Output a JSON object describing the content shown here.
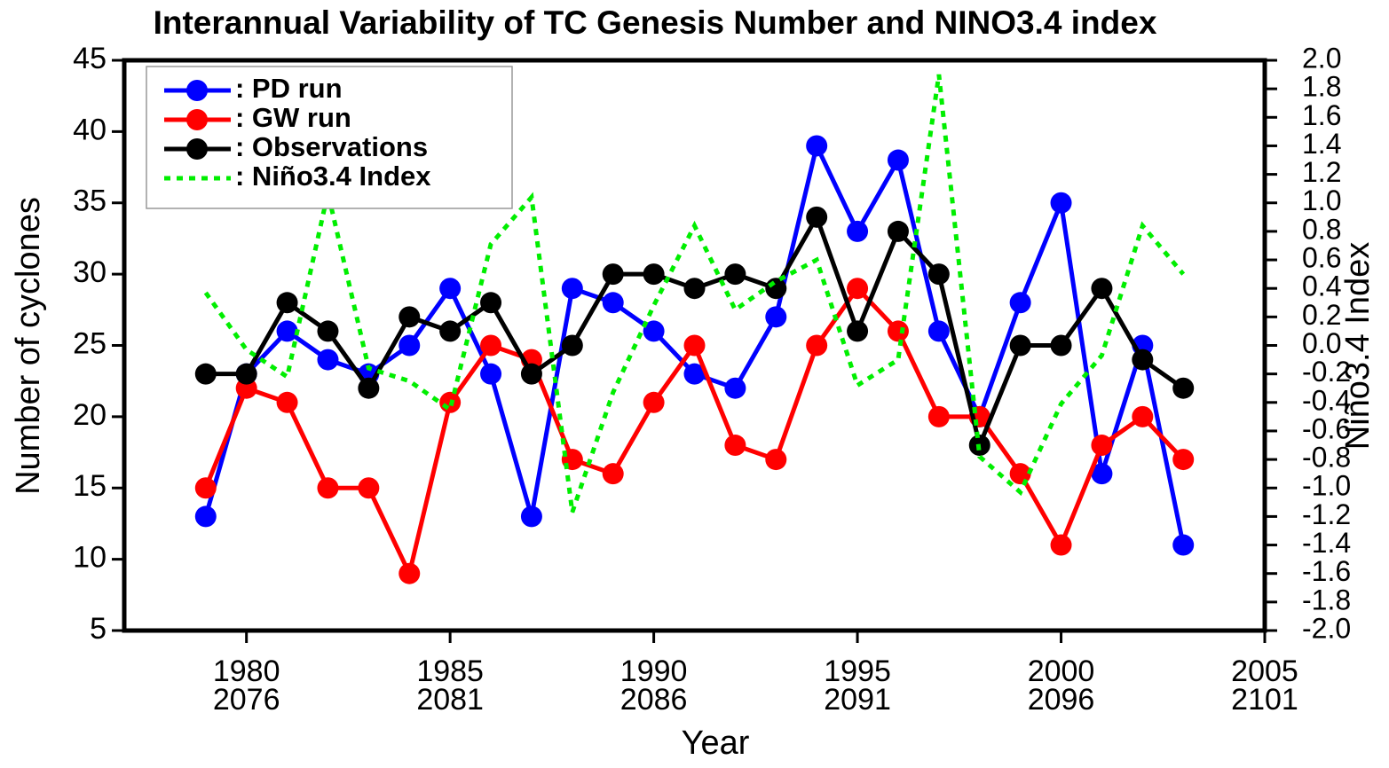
{
  "chart_data": {
    "type": "line",
    "title": "Interannual Variability of TC Genesis Number and NINO3.4 index",
    "xlabel": "Year",
    "ylabel": "Number of cyclones",
    "y2label": "Niño3.4 Index",
    "x": [
      1979,
      1980,
      1981,
      1982,
      1983,
      1984,
      1985,
      1986,
      1987,
      1988,
      1989,
      1990,
      1991,
      1992,
      1993,
      1994,
      1995,
      1996,
      1997,
      1998,
      1999,
      2000,
      2001,
      2002,
      2003
    ],
    "xlim": [
      1977,
      2005
    ],
    "xticks": [
      1980,
      1985,
      1990,
      1995,
      2000,
      2005
    ],
    "xticks_second_row": [
      2076,
      2081,
      2086,
      2091,
      2096,
      2101
    ],
    "ylim": [
      5,
      45
    ],
    "yticks": [
      5,
      10,
      15,
      20,
      25,
      30,
      35,
      40,
      45
    ],
    "y2lim": [
      -2,
      2
    ],
    "y2ticks": [
      {
        "value": -2,
        "label": "-2.0"
      },
      -1.8,
      -1.6,
      -1.4,
      -1.2,
      {
        "value": -1,
        "label": "-1.0"
      },
      -0.8,
      -0.6,
      -0.4,
      -0.2,
      {
        "value": 0,
        "label": "0.0"
      },
      0.2,
      0.4,
      0.6,
      0.8,
      {
        "value": 1,
        "label": "1.0"
      },
      1.2,
      1.4,
      1.6,
      1.8,
      {
        "value": 2,
        "label": "2.0"
      }
    ],
    "legend": "upper left",
    "series": [
      {
        "name": ": PD run",
        "color": "#0000ff",
        "marker": true,
        "dashed": false,
        "values": [
          13,
          23,
          26,
          24,
          23,
          25,
          29,
          23,
          13,
          29,
          28,
          26,
          23,
          22,
          27,
          39,
          33,
          38,
          26,
          20,
          28,
          35,
          16,
          25,
          11
        ]
      },
      {
        "name": ": GW run",
        "color": "#ff0000",
        "marker": true,
        "dashed": false,
        "values": [
          15,
          22,
          21,
          15,
          15,
          9,
          21,
          25,
          24,
          17,
          16,
          21,
          25,
          18,
          17,
          25,
          29,
          26,
          20,
          20,
          16,
          11,
          18,
          20,
          17
        ]
      },
      {
        "name": ": Observations",
        "color": "#000000",
        "marker": true,
        "dashed": false,
        "values": [
          23,
          23,
          28,
          26,
          22,
          27,
          26,
          28,
          23,
          25,
          30,
          30,
          29,
          30,
          29,
          34,
          26,
          33,
          30,
          18,
          25,
          25,
          29,
          24,
          22
        ]
      },
      {
        "name": ": Niño3.4 Index",
        "color": "#00ee00",
        "marker": false,
        "dashed": true,
        "axis": "y2",
        "values": [
          0.37,
          -0.03,
          -0.22,
          1.07,
          -0.16,
          -0.25,
          -0.45,
          0.71,
          1.04,
          -1.17,
          -0.33,
          0.28,
          0.84,
          0.25,
          0.45,
          0.6,
          -0.28,
          -0.1,
          1.9,
          -0.78,
          -1.03,
          -0.41,
          -0.07,
          0.84,
          0.5
        ]
      }
    ]
  }
}
